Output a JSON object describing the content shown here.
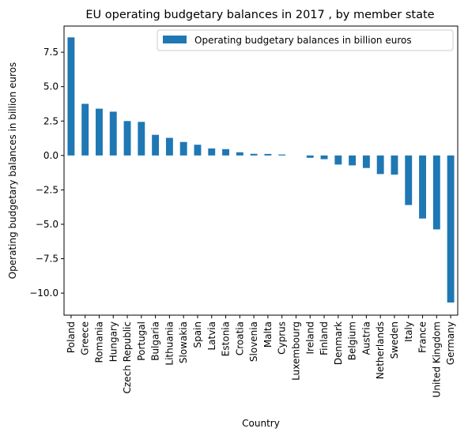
{
  "chart_data": {
    "type": "bar",
    "title": "EU operating budgetary balances in 2017 , by member state",
    "xlabel": "Country",
    "ylabel": "Operating budgetary balances in billion euros",
    "ylim": [
      -11.6,
      9.4
    ],
    "yticks": [
      -10.0,
      -7.5,
      -5.0,
      -2.5,
      0.0,
      2.5,
      5.0,
      7.5
    ],
    "ytick_labels": [
      "−10.0",
      "−7.5",
      "−5.0",
      "−2.5",
      "0.0",
      "2.5",
      "5.0",
      "7.5"
    ],
    "grid": false,
    "legend_position": "top-right",
    "bar_color": "#1f77b4",
    "categories": [
      "Poland",
      "Greece",
      "Romania",
      "Hungary",
      "Czech Republic",
      "Portugal",
      "Bulgaria",
      "Lithuania",
      "Slowakia",
      "Spain",
      "Latvia",
      "Estonia",
      "Croatia",
      "Slovenia",
      "Malta",
      "Cyprus",
      "Luxembourg",
      "Ireland",
      "Finland",
      "Denmark",
      "Belgium",
      "Austria",
      "Netherlands",
      "Sweden",
      "Italy",
      "France",
      "United Kingdom",
      "Germany"
    ],
    "series": [
      {
        "name": "Operating budgetary balances in billion euros",
        "values": [
          8.58,
          3.75,
          3.4,
          3.18,
          2.5,
          2.44,
          1.5,
          1.28,
          0.98,
          0.78,
          0.51,
          0.46,
          0.23,
          0.12,
          0.11,
          0.07,
          0.0,
          -0.17,
          -0.27,
          -0.66,
          -0.72,
          -0.91,
          -1.35,
          -1.39,
          -3.6,
          -4.58,
          -5.37,
          -10.68
        ]
      }
    ]
  }
}
